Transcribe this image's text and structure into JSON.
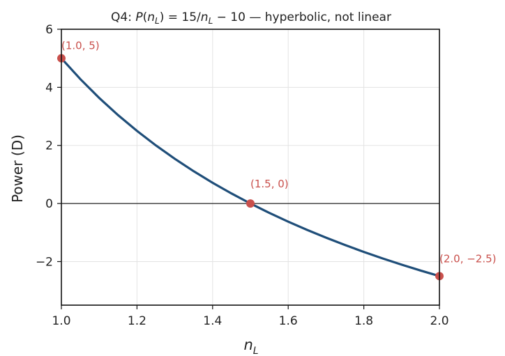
{
  "chart_data": {
    "type": "line",
    "title": "Q4: P(n_L) = 15/n_L − 10 — hyperbolic, not linear",
    "title_parts": {
      "prefix": "Q4: ",
      "P": "P",
      "open": "(",
      "n": "n",
      "sub": "L",
      "close_eq": ") = 15/",
      "n2": "n",
      "sub2": "L",
      "tail": " − 10 — hyperbolic, not linear"
    },
    "xlabel": "n_L",
    "xlabel_parts": {
      "n": "n",
      "sub": "L"
    },
    "ylabel": "Power (D)",
    "xlim": [
      1.0,
      2.0
    ],
    "ylim": [
      -3.5,
      6
    ],
    "xticks": [
      "1.0",
      "1.2",
      "1.4",
      "1.6",
      "1.8",
      "2.0"
    ],
    "xtick_values": [
      1.0,
      1.2,
      1.4,
      1.6,
      1.8,
      2.0
    ],
    "yticks": [
      "−2",
      "0",
      "2",
      "4",
      "6"
    ],
    "ytick_values": [
      -2,
      0,
      2,
      4,
      6
    ],
    "grid": true,
    "zero_line": true,
    "series": [
      {
        "function": "15/n_L - 10",
        "color": "#1f4e79",
        "x": [
          1.0,
          1.05,
          1.1,
          1.15,
          1.2,
          1.25,
          1.3,
          1.35,
          1.4,
          1.45,
          1.5,
          1.55,
          1.6,
          1.65,
          1.7,
          1.75,
          1.8,
          1.85,
          1.9,
          1.95,
          2.0
        ],
        "y": [
          5.0,
          4.286,
          3.636,
          3.043,
          2.5,
          2.0,
          1.538,
          1.111,
          0.714,
          0.345,
          0.0,
          -0.323,
          -0.625,
          -0.909,
          -1.176,
          -1.429,
          -1.667,
          -1.892,
          -2.105,
          -2.308,
          -2.5
        ]
      }
    ],
    "points": [
      {
        "x": 1.0,
        "y": 5,
        "label": "(1.0, 5)"
      },
      {
        "x": 1.5,
        "y": 0,
        "label": "(1.5, 0)"
      },
      {
        "x": 2.0,
        "y": -2.5,
        "label": "(2.0, −2.5)"
      }
    ],
    "point_color": "#c9504c"
  }
}
